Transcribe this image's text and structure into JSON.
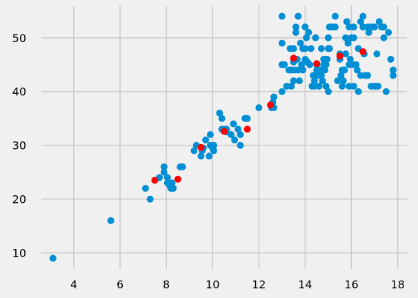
{
  "chart_data": {
    "type": "scatter",
    "title": "",
    "xlabel": "",
    "ylabel": "",
    "xlim": [
      2.6,
      18.4
    ],
    "ylim": [
      7,
      56
    ],
    "x_ticks": [
      4,
      6,
      8,
      10,
      12,
      14,
      16,
      18
    ],
    "y_ticks": [
      10,
      20,
      30,
      40,
      50
    ],
    "x_tick_labels": [
      "4",
      "6",
      "8",
      "10",
      "12",
      "14",
      "16",
      "18"
    ],
    "y_tick_labels": [
      "10",
      "20",
      "30",
      "40",
      "50"
    ],
    "grid": true,
    "legend": "none",
    "background": "#f0f0f0",
    "series": [
      {
        "color": "#008fd5",
        "points": [
          [
            3.1,
            9
          ],
          [
            5.6,
            16
          ],
          [
            7.1,
            22
          ],
          [
            7.3,
            20
          ],
          [
            7.7,
            24
          ],
          [
            7.9,
            25
          ],
          [
            7.9,
            26
          ],
          [
            8.05,
            24
          ],
          [
            8.05,
            23
          ],
          [
            8.1,
            23
          ],
          [
            8.15,
            22.5
          ],
          [
            8.2,
            22
          ],
          [
            8.25,
            23
          ],
          [
            8.3,
            22
          ],
          [
            8.6,
            26
          ],
          [
            8.7,
            26
          ],
          [
            9.2,
            29
          ],
          [
            9.3,
            30
          ],
          [
            9.5,
            28
          ],
          [
            9.55,
            29
          ],
          [
            9.6,
            29.5
          ],
          [
            9.7,
            31
          ],
          [
            9.85,
            28
          ],
          [
            9.9,
            32
          ],
          [
            9.9,
            30
          ],
          [
            10.0,
            29.5
          ],
          [
            10.05,
            30
          ],
          [
            10.05,
            29
          ],
          [
            10.3,
            36
          ],
          [
            10.4,
            35
          ],
          [
            10.4,
            33
          ],
          [
            10.5,
            33
          ],
          [
            10.6,
            33
          ],
          [
            10.6,
            32.5
          ],
          [
            10.8,
            32
          ],
          [
            10.9,
            34
          ],
          [
            10.95,
            31
          ],
          [
            11.1,
            33
          ],
          [
            11.2,
            32
          ],
          [
            11.2,
            30
          ],
          [
            11.4,
            35
          ],
          [
            11.5,
            35
          ],
          [
            12.0,
            37
          ],
          [
            12.55,
            37
          ],
          [
            12.6,
            38
          ],
          [
            12.65,
            37
          ],
          [
            12.65,
            39
          ],
          [
            13.0,
            54
          ],
          [
            13.0,
            49
          ],
          [
            13.0,
            45
          ],
          [
            13.0,
            40
          ],
          [
            13.1,
            45
          ],
          [
            13.2,
            41
          ],
          [
            13.3,
            44
          ],
          [
            13.35,
            48
          ],
          [
            13.4,
            44
          ],
          [
            13.4,
            41
          ],
          [
            13.5,
            48
          ],
          [
            13.5,
            45.5
          ],
          [
            13.5,
            42
          ],
          [
            13.55,
            44
          ],
          [
            13.6,
            52
          ],
          [
            13.6,
            51
          ],
          [
            13.65,
            46
          ],
          [
            13.7,
            54
          ],
          [
            13.7,
            44
          ],
          [
            13.75,
            42
          ],
          [
            13.8,
            49
          ],
          [
            13.85,
            45
          ],
          [
            13.9,
            48
          ],
          [
            13.9,
            44
          ],
          [
            14.0,
            52
          ],
          [
            14.0,
            48
          ],
          [
            14.0,
            46
          ],
          [
            14.05,
            50
          ],
          [
            14.1,
            45.5
          ],
          [
            14.15,
            51
          ],
          [
            14.2,
            45
          ],
          [
            14.25,
            48
          ],
          [
            14.3,
            41
          ],
          [
            14.35,
            43
          ],
          [
            14.4,
            42
          ],
          [
            14.4,
            41
          ],
          [
            14.45,
            50
          ],
          [
            14.5,
            45
          ],
          [
            14.5,
            44
          ],
          [
            14.55,
            43
          ],
          [
            14.6,
            41
          ],
          [
            14.65,
            44
          ],
          [
            14.7,
            48
          ],
          [
            14.7,
            43
          ],
          [
            14.75,
            42
          ],
          [
            14.8,
            46
          ],
          [
            14.8,
            45
          ],
          [
            14.85,
            44
          ],
          [
            14.9,
            46
          ],
          [
            14.9,
            45
          ],
          [
            14.9,
            41
          ],
          [
            14.95,
            46
          ],
          [
            15.0,
            50
          ],
          [
            15.0,
            48
          ],
          [
            15.0,
            40
          ],
          [
            15.05,
            52
          ],
          [
            15.05,
            48
          ],
          [
            15.1,
            52
          ],
          [
            15.2,
            52
          ],
          [
            15.3,
            54
          ],
          [
            15.3,
            52
          ],
          [
            15.4,
            42
          ],
          [
            15.5,
            47
          ],
          [
            15.5,
            46
          ],
          [
            15.55,
            43
          ],
          [
            15.6,
            44
          ],
          [
            15.6,
            41
          ],
          [
            15.65,
            42
          ],
          [
            15.7,
            44
          ],
          [
            15.75,
            50
          ],
          [
            15.75,
            47
          ],
          [
            15.8,
            53
          ],
          [
            15.85,
            49
          ],
          [
            15.9,
            52
          ],
          [
            15.9,
            45
          ],
          [
            15.9,
            41
          ],
          [
            15.95,
            46
          ],
          [
            16.0,
            50
          ],
          [
            16.05,
            45
          ],
          [
            16.1,
            52
          ],
          [
            16.1,
            50
          ],
          [
            16.1,
            41
          ],
          [
            16.2,
            45
          ],
          [
            16.25,
            44
          ],
          [
            16.3,
            48
          ],
          [
            16.3,
            40
          ],
          [
            16.4,
            53
          ],
          [
            16.4,
            43
          ],
          [
            16.5,
            54
          ],
          [
            16.5,
            52
          ],
          [
            16.55,
            47
          ],
          [
            16.6,
            43
          ],
          [
            16.7,
            43
          ],
          [
            16.7,
            52
          ],
          [
            16.75,
            51
          ],
          [
            16.8,
            52
          ],
          [
            16.85,
            41
          ],
          [
            16.9,
            52
          ],
          [
            17.0,
            52
          ],
          [
            17.0,
            41
          ],
          [
            17.05,
            41
          ],
          [
            17.1,
            47
          ],
          [
            17.15,
            41
          ],
          [
            17.2,
            53
          ],
          [
            17.3,
            52
          ],
          [
            17.4,
            50
          ],
          [
            17.4,
            52
          ],
          [
            17.5,
            40
          ],
          [
            17.6,
            51
          ],
          [
            17.7,
            46
          ],
          [
            17.8,
            44
          ],
          [
            17.8,
            43
          ]
        ]
      },
      {
        "color": "#fc0100",
        "points": [
          [
            7.5,
            23.5
          ],
          [
            8.5,
            23.7
          ],
          [
            9.5,
            29.6
          ],
          [
            10.5,
            32.6
          ],
          [
            11.5,
            33
          ],
          [
            12.5,
            37.5
          ],
          [
            13.5,
            46.2
          ],
          [
            14.5,
            45.2
          ],
          [
            15.5,
            46.6
          ],
          [
            16.5,
            47.4
          ]
        ]
      }
    ]
  }
}
